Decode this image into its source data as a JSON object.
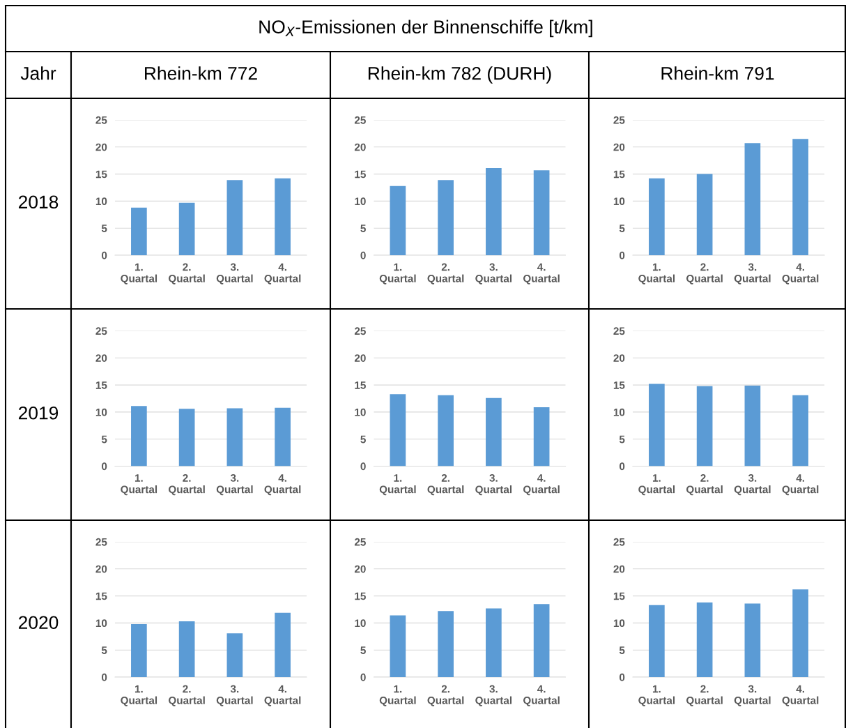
{
  "chart_data": [
    {
      "type": "other",
      "title": "NO$_{X}$-Emissionen der Binnenschiffe [t/km]",
      "annotations": [
        "Jahr",
        "Rhein-km 772",
        "Rhein-km 782 (DURH)",
        "Rhein-km 791",
        "2018",
        "2019",
        "2020"
      ]
    },
    {
      "type": "bar",
      "categories": [
        "1.\nQuartal",
        "2.\nQuartal",
        "3.\nQuartal",
        "4.\nQuartal"
      ],
      "values": [
        8.8,
        9.7,
        13.9,
        14.2
      ],
      "color": "#5b9bd5",
      "ylim": [
        0,
        25
      ],
      "yticks": [
        0,
        5,
        10,
        15,
        20,
        25
      ],
      "grid": "y"
    },
    {
      "type": "bar",
      "categories": [
        "1.\nQuartal",
        "2.\nQuartal",
        "3.\nQuartal",
        "4.\nQuartal"
      ],
      "values": [
        12.8,
        13.9,
        16.1,
        15.7
      ],
      "color": "#5b9bd5",
      "ylim": [
        0,
        25
      ],
      "yticks": [
        0,
        5,
        10,
        15,
        20,
        25
      ],
      "grid": "y"
    },
    {
      "type": "bar",
      "categories": [
        "1.\nQuartal",
        "2.\nQuartal",
        "3.\nQuartal",
        "4.\nQuartal"
      ],
      "values": [
        14.2,
        15.0,
        20.7,
        21.5
      ],
      "color": "#5b9bd5",
      "ylim": [
        0,
        25
      ],
      "yticks": [
        0,
        5,
        10,
        15,
        20,
        25
      ],
      "grid": "y"
    },
    {
      "type": "bar",
      "categories": [
        "1.\nQuartal",
        "2.\nQuartal",
        "3.\nQuartal",
        "4.\nQuartal"
      ],
      "values": [
        11.1,
        10.6,
        10.7,
        10.8
      ],
      "color": "#5b9bd5",
      "ylim": [
        0,
        25
      ],
      "yticks": [
        0,
        5,
        10,
        15,
        20,
        25
      ],
      "grid": "y"
    },
    {
      "type": "bar",
      "categories": [
        "1.\nQuartal",
        "2.\nQuartal",
        "3.\nQuartal",
        "4.\nQuartal"
      ],
      "values": [
        13.3,
        13.1,
        12.6,
        10.9
      ],
      "color": "#5b9bd5",
      "ylim": [
        0,
        25
      ],
      "yticks": [
        0,
        5,
        10,
        15,
        20,
        25
      ],
      "grid": "y"
    },
    {
      "type": "bar",
      "categories": [
        "1.\nQuartal",
        "2.\nQuartal",
        "3.\nQuartal",
        "4.\nQuartal"
      ],
      "values": [
        15.2,
        14.8,
        14.9,
        13.1
      ],
      "color": "#5b9bd5",
      "ylim": [
        0,
        25
      ],
      "yticks": [
        0,
        5,
        10,
        15,
        20,
        25
      ],
      "grid": "y"
    },
    {
      "type": "bar",
      "categories": [
        "1.\nQuartal",
        "2.\nQuartal",
        "3.\nQuartal",
        "4.\nQuartal"
      ],
      "values": [
        9.8,
        10.3,
        8.1,
        11.9
      ],
      "color": "#5b9bd5",
      "ylim": [
        0,
        25
      ],
      "yticks": [
        0,
        5,
        10,
        15,
        20,
        25
      ],
      "grid": "y"
    },
    {
      "type": "bar",
      "categories": [
        "1.\nQuartal",
        "2.\nQuartal",
        "3.\nQuartal",
        "4.\nQuartal"
      ],
      "values": [
        11.4,
        12.2,
        12.7,
        13.5
      ],
      "color": "#5b9bd5",
      "ylim": [
        0,
        25
      ],
      "yticks": [
        0,
        5,
        10,
        15,
        20,
        25
      ],
      "grid": "y"
    },
    {
      "type": "bar",
      "categories": [
        "1.\nQuartal",
        "2.\nQuartal",
        "3.\nQuartal",
        "4.\nQuartal"
      ],
      "values": [
        13.3,
        13.8,
        13.6,
        16.2
      ],
      "color": "#5b9bd5",
      "ylim": [
        0,
        25
      ],
      "yticks": [
        0,
        5,
        10,
        15,
        20,
        25
      ],
      "grid": "y"
    }
  ]
}
